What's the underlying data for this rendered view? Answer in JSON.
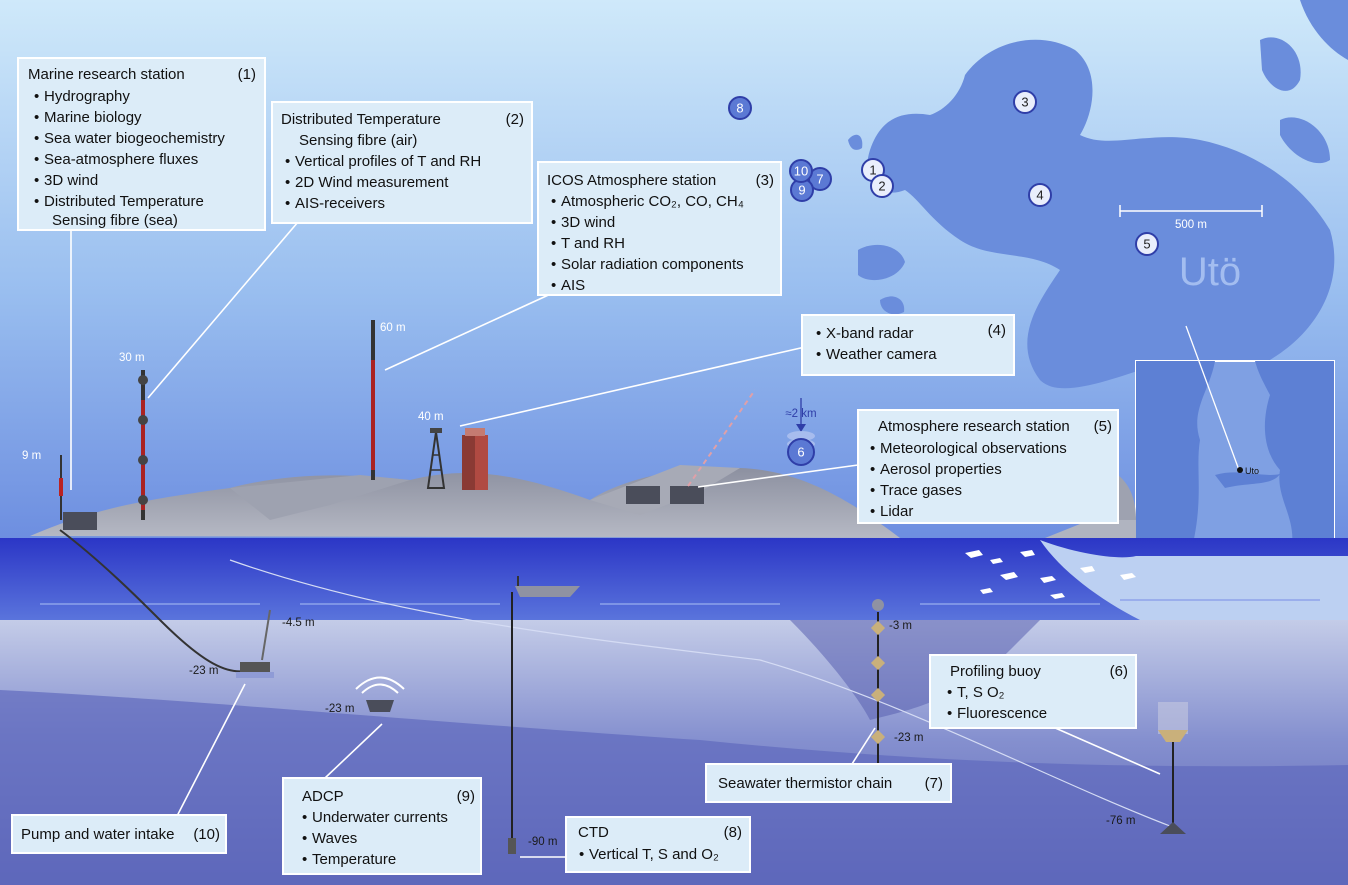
{
  "boxes": {
    "b1": {
      "title": "Marine research station",
      "num": "(1)",
      "items": [
        "Hydrography",
        "Marine biology",
        "Sea water biogeochemistry",
        "Sea-atmosphere fluxes",
        "3D wind",
        "Distributed Temperature"
      ],
      "cont": "Sensing fibre (sea)"
    },
    "b2": {
      "title": "Distributed Temperature",
      "title2": "Sensing fibre (air)",
      "num": "(2)",
      "items": [
        "Vertical profiles of T and RH",
        "2D Wind measurement",
        "AIS-receivers"
      ]
    },
    "b3": {
      "title": "ICOS Atmosphere station",
      "num": "(3)",
      "items": [
        "Atmospheric CO₂, CO, CH₄",
        "3D wind",
        "T and RH",
        "Solar radiation components",
        "AIS"
      ]
    },
    "b4": {
      "num": "(4)",
      "items": [
        "X-band radar",
        "Weather camera"
      ]
    },
    "b5": {
      "title": "Atmosphere research station",
      "num": "(5)",
      "items": [
        "Meteorological observations",
        "Aerosol properties",
        "Trace gases",
        "Lidar"
      ]
    },
    "b6": {
      "title": "Profiling buoy",
      "num": "(6)",
      "items": [
        "T, S O₂",
        "Fluorescence"
      ]
    },
    "b7": {
      "title": "Seawater thermistor chain",
      "num": "(7)"
    },
    "b8": {
      "title": "CTD",
      "num": "(8)",
      "items": [
        "Vertical T, S and O₂"
      ]
    },
    "b9": {
      "title": "ADCP",
      "num": "(9)",
      "items": [
        "Underwater currents",
        "Waves",
        "Temperature"
      ]
    },
    "b10": {
      "title": "Pump and water intake",
      "num": "(10)"
    }
  },
  "heights": [
    "9 m",
    "30 m",
    "60 m",
    "40 m"
  ],
  "depths": [
    "-4.5 m",
    "-23 m",
    "-23 m",
    "-3 m",
    "-23 m",
    "-76 m",
    "-90 m"
  ],
  "map": {
    "island_name": "Utö",
    "scale_label": "500 m",
    "markers": [
      "1",
      "2",
      "3",
      "4",
      "5",
      "7",
      "8",
      "9",
      "10"
    ],
    "inset_label": "Uto"
  },
  "buoy_marker": "6",
  "buoy_distance": "≈2 km",
  "colors": {
    "sky_top": "#c4e3f7",
    "sky_bottom": "#6d90dd",
    "sea": "#3d4fcc",
    "land": "#6c8fdb",
    "box": "#dcecf8"
  }
}
